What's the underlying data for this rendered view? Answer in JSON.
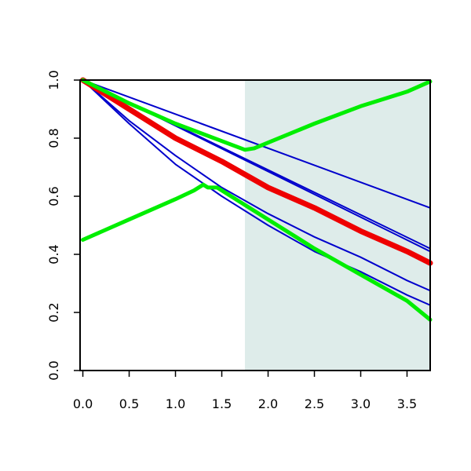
{
  "chart_data": {
    "type": "line",
    "title": "",
    "xlabel": "",
    "ylabel": "",
    "xlim": [
      -0.03,
      3.75
    ],
    "ylim": [
      0.0,
      1.0
    ],
    "x_ticks": [
      0.0,
      0.5,
      1.0,
      1.5,
      2.0,
      2.5,
      3.0,
      3.5
    ],
    "x_tick_labels": [
      "0.0",
      "0.5",
      "1.0",
      "1.5",
      "2.0",
      "2.5",
      "3.0",
      "3.5"
    ],
    "y_ticks": [
      0.0,
      0.2,
      0.4,
      0.6,
      0.8,
      1.0
    ],
    "y_tick_labels": [
      "0.0",
      "0.2",
      "0.4",
      "0.6",
      "0.8",
      "1.0"
    ],
    "grid": false,
    "legend": "none",
    "shaded_region": {
      "x_from": 1.75,
      "x_to": 3.75,
      "color": "#deecea"
    },
    "series": [
      {
        "color": "#0000cc",
        "width": 2,
        "x": [
          0,
          3.75
        ],
        "y": [
          1.0,
          0.56
        ]
      },
      {
        "color": "#0000cc",
        "width": 2,
        "x": [
          0,
          3.75
        ],
        "y": [
          1.0,
          0.42
        ]
      },
      {
        "color": "#0000cc",
        "width": 2,
        "x": [
          0,
          3.75
        ],
        "y": [
          1.0,
          0.41
        ]
      },
      {
        "color": "#0000cc",
        "width": 2,
        "x": [
          0,
          0.5,
          1.0,
          1.5,
          2.0,
          2.5,
          3.0,
          3.5,
          3.75
        ],
        "y": [
          1.0,
          0.86,
          0.74,
          0.63,
          0.54,
          0.46,
          0.39,
          0.31,
          0.275
        ]
      },
      {
        "color": "#0000cc",
        "width": 2,
        "x": [
          0,
          0.5,
          1.0,
          1.5,
          2.0,
          2.5,
          3.0,
          3.5,
          3.75
        ],
        "y": [
          1.0,
          0.85,
          0.71,
          0.6,
          0.5,
          0.41,
          0.34,
          0.26,
          0.225
        ]
      },
      {
        "color": "#ee0000",
        "width": 7,
        "x": [
          0,
          0.5,
          1.0,
          1.5,
          2.0,
          2.5,
          3.0,
          3.5,
          3.75
        ],
        "y": [
          1.0,
          0.9,
          0.8,
          0.72,
          0.63,
          0.56,
          0.48,
          0.41,
          0.37
        ]
      },
      {
        "color": "#00ee00",
        "width": 5,
        "x": [
          0,
          0.5,
          1.0,
          1.5,
          1.75,
          1.85,
          2.5,
          3.0,
          3.5,
          3.75
        ],
        "y": [
          1.0,
          0.92,
          0.85,
          0.79,
          0.76,
          0.765,
          0.85,
          0.91,
          0.96,
          0.995
        ]
      },
      {
        "color": "#00ee00",
        "width": 5,
        "x": [
          0,
          0.5,
          1.0,
          1.2,
          1.3,
          1.35,
          1.45,
          1.75,
          2.0,
          2.5,
          3.0,
          3.5,
          3.75
        ],
        "y": [
          0.45,
          0.52,
          0.59,
          0.62,
          0.64,
          0.63,
          0.63,
          0.57,
          0.52,
          0.42,
          0.33,
          0.24,
          0.175
        ]
      }
    ]
  }
}
